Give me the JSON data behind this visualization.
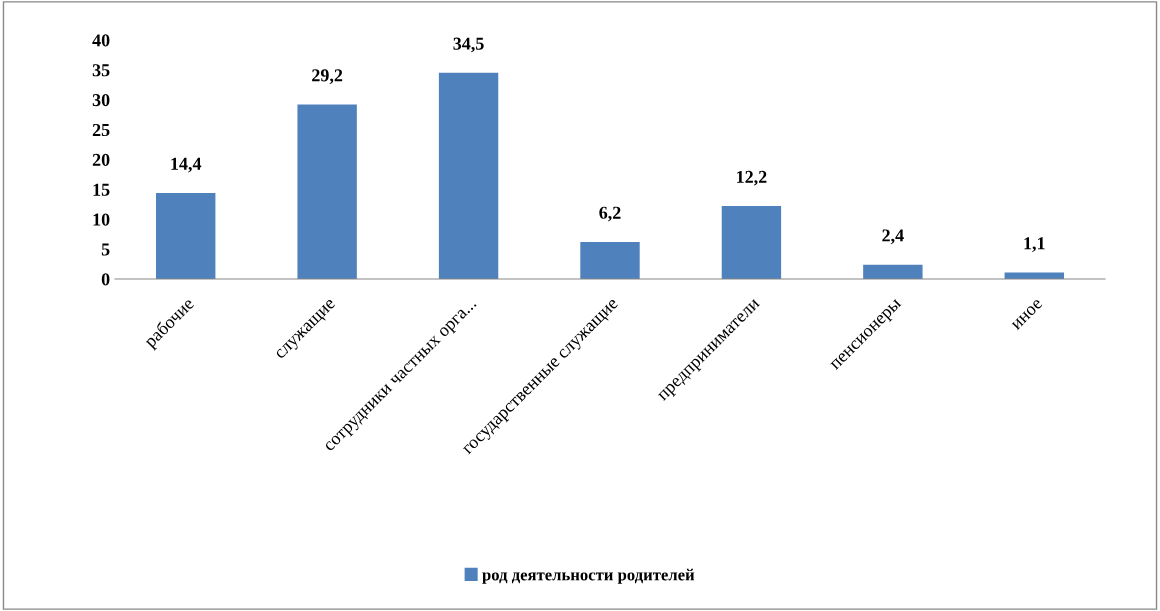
{
  "chart_data": {
    "type": "bar",
    "categories": [
      "рабочие",
      "служащие",
      "сотрудники частных орга...",
      "государственные служащие",
      "предприниматели",
      "пенсионеры",
      "иное"
    ],
    "series": [
      {
        "name": "род деятельности родителей",
        "color": "#4f81bd",
        "values": [
          14.4,
          29.2,
          34.5,
          6.2,
          12.2,
          2.4,
          1.1
        ]
      }
    ],
    "value_labels": [
      "14,4",
      "29,2",
      "34,5",
      "6,2",
      "12,2",
      "2,4",
      "1,1"
    ],
    "ylim": [
      0,
      40
    ],
    "yticks": [
      0,
      5,
      10,
      15,
      20,
      25,
      30,
      35,
      40
    ],
    "grid": false,
    "legend": "bottom"
  }
}
